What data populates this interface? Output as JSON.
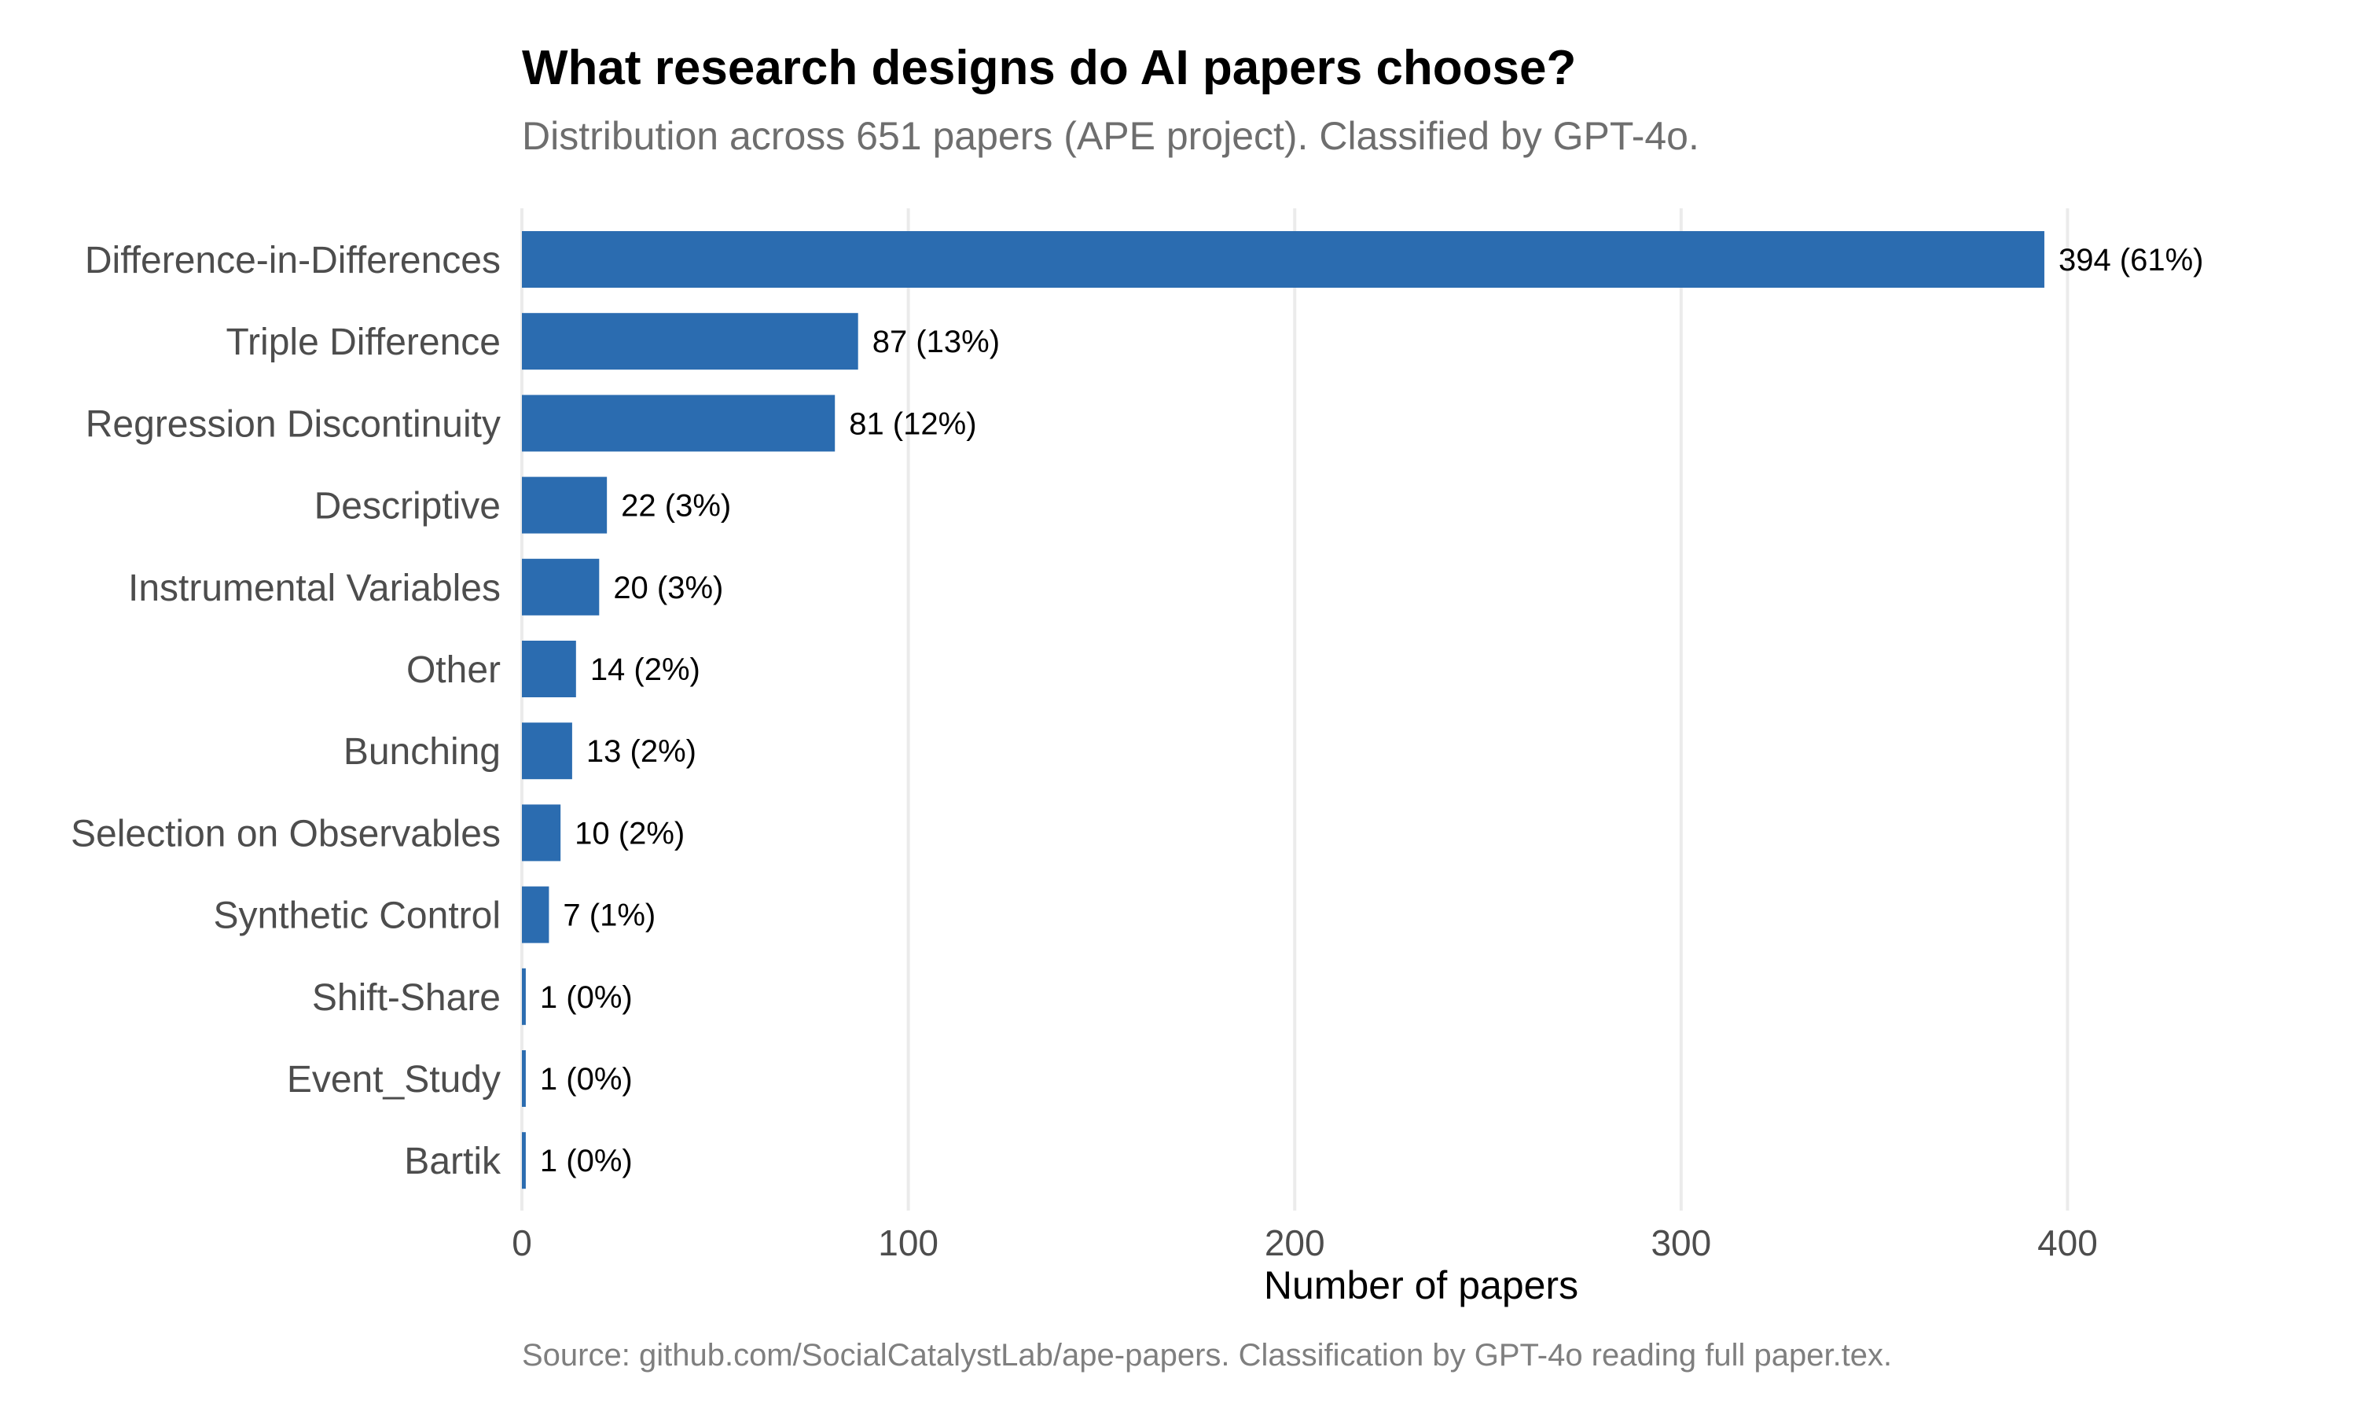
{
  "chart_data": {
    "type": "bar",
    "orientation": "horizontal",
    "title": "What research designs do AI papers choose?",
    "subtitle": "Distribution across 651 papers (APE project). Classified by GPT-4o.",
    "xlabel": "Number of papers",
    "ylabel": "",
    "caption": "Source: github.com/SocialCatalystLab/ape-papers. Classification by GPT-4o reading full paper.tex.",
    "xlim": [
      0,
      465
    ],
    "xticks": [
      0,
      100,
      200,
      300,
      400
    ],
    "grid": "vertical",
    "legend": "none",
    "bar_color": "#2b6cb0",
    "categories": [
      "Difference-in-Differences",
      "Triple Difference",
      "Regression Discontinuity",
      "Descriptive",
      "Instrumental Variables",
      "Other",
      "Bunching",
      "Selection on Observables",
      "Synthetic Control",
      "Shift-Share",
      "Event_Study",
      "Bartik"
    ],
    "values": [
      394,
      87,
      81,
      22,
      20,
      14,
      13,
      10,
      7,
      1,
      1,
      1
    ],
    "data_labels": [
      "394 (61%)",
      "87 (13%)",
      "81 (12%)",
      "22 (3%)",
      "20 (3%)",
      "14 (2%)",
      "13 (2%)",
      "10 (2%)",
      "7 (1%)",
      "1 (0%)",
      "1 (0%)",
      "1 (0%)"
    ]
  }
}
